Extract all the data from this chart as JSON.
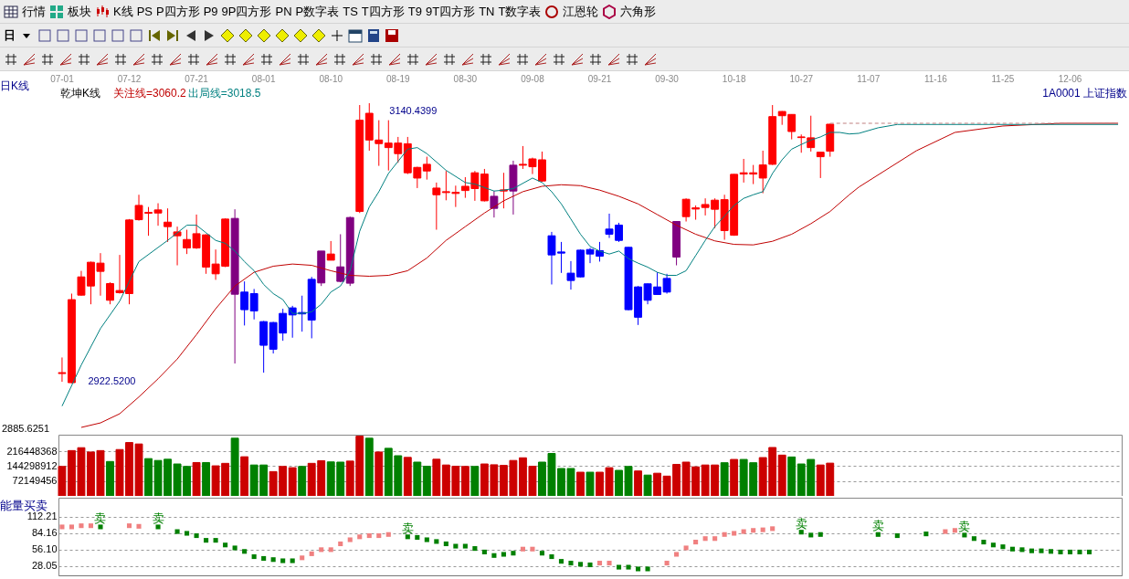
{
  "chart_data": [
    {
      "type": "other",
      "annotations": [
        "行情",
        "板块",
        "K线",
        "PS",
        "P四方形",
        "P9",
        "9P四方形",
        "PN",
        "P数字表",
        "TS",
        "T四方形",
        "T9",
        "9T四方形",
        "TN",
        "T数字表",
        "江恩轮",
        "六角形",
        "日"
      ]
    },
    {
      "type": "candlestick",
      "title": "日K线",
      "subtitle": "乾坤K线",
      "categories": [
        "07-01",
        null,
        null,
        null,
        null,
        null,
        null,
        "07-12",
        null,
        null,
        null,
        null,
        null,
        null,
        "07-21",
        null,
        null,
        null,
        null,
        null,
        null,
        "08-01",
        null,
        null,
        null,
        null,
        null,
        null,
        "08-10",
        null,
        null,
        null,
        null,
        null,
        null,
        "08-19",
        null,
        null,
        null,
        null,
        null,
        null,
        "08-30",
        null,
        null,
        null,
        null,
        null,
        null,
        "09-08",
        null,
        null,
        null,
        null,
        null,
        null,
        "09-21",
        null,
        null,
        null,
        null,
        null,
        null,
        "09-30",
        null,
        null,
        null,
        null,
        null,
        null,
        "10-18",
        null,
        null,
        null,
        null,
        null,
        null,
        "10-27",
        null,
        null,
        null,
        null,
        null,
        null,
        "11-07",
        null,
        null,
        null,
        null,
        null,
        null,
        "11-16",
        null,
        null,
        null,
        null,
        null,
        null,
        "11-25",
        null,
        null,
        null,
        null,
        null,
        null,
        "12-06",
        null,
        null,
        null,
        null,
        null
      ],
      "ohlc": [
        [
          2930.1,
          2942.6,
          2923.7,
          2930.8
        ],
        [
          2923.0,
          2992.3,
          2922.52,
          2987.6
        ],
        [
          2991.1,
          3010.0,
          2990.7,
          3005.3
        ],
        [
          2998.2,
          3017.2,
          2984.0,
          3016.7
        ],
        [
          3009.6,
          3023.8,
          2990.7,
          3016.0
        ],
        [
          2987.1,
          3001.1,
          2984.0,
          3000.1
        ],
        [
          2993.0,
          3022.4,
          2992.3,
          2994.7
        ],
        [
          2992.3,
          3050.3,
          2984.0,
          3049.6
        ],
        [
          3049.8,
          3069.2,
          3049.1,
          3060.9
        ],
        [
          3054.8,
          3059.7,
          3037.3,
          3055.5
        ],
        [
          3055.0,
          3062.6,
          3045.1,
          3057.4
        ],
        [
          3044.4,
          3058.6,
          3032.5,
          3047.9
        ],
        [
          3037.3,
          3044.4,
          3014.3,
          3040.3
        ],
        [
          3027.8,
          3042.0,
          3023.1,
          3034.4
        ],
        [
          3027.8,
          3053.8,
          3027.1,
          3038.9
        ],
        [
          3012.9,
          3038.5,
          3007.7,
          3038.0
        ],
        [
          3007.7,
          3026.6,
          3003.0,
          3015.3
        ],
        [
          3013.6,
          3050.8,
          3012.9,
          3050.3
        ],
        [
          2991.8,
          3057.9,
          2937.9,
          3050.8
        ],
        [
          2993.5,
          3001.8,
          2967.5,
          2979.8
        ],
        [
          2992.3,
          2995.9,
          2972.2,
          2978.8
        ],
        [
          2970.5,
          2971.0,
          2930.8,
          2952.1
        ],
        [
          2969.8,
          2970.3,
          2945.7,
          2949.0
        ],
        [
          2976.9,
          2980.5,
          2955.6,
          2961.6
        ],
        [
          2981.2,
          2982.8,
          2958.0,
          2975.7
        ],
        [
          2977.6,
          2990.7,
          2962.7,
          2976.5
        ],
        [
          3003.4,
          3005.3,
          2957.5,
          2971.7
        ],
        [
          3000.6,
          3025.4,
          2998.2,
          3025.4
        ],
        [
          3018.3,
          3033.2,
          3018.3,
          3023.1
        ],
        [
          3001.8,
          3038.5,
          3001.1,
          3013.1
        ],
        [
          3000.4,
          3052.2,
          2998.2,
          3051.5
        ],
        [
          3056.2,
          3139.0,
          3055.0,
          3127.2
        ],
        [
          3111.8,
          3140.4399,
          3103.5,
          3132.6
        ],
        [
          3109.0,
          3127.2,
          3091.7,
          3111.8
        ],
        [
          3105.9,
          3127.2,
          3088.1,
          3109.4
        ],
        [
          3101.2,
          3114.2,
          3094.1,
          3109.4
        ],
        [
          3086.3,
          3114.2,
          3085.3,
          3108.9
        ],
        [
          3082.2,
          3091.0,
          3074.4,
          3090.5
        ],
        [
          3087.7,
          3098.8,
          3081.0,
          3092.9
        ],
        [
          3069.2,
          3078.7,
          3042.0,
          3074.4
        ],
        [
          3070.9,
          3087.7,
          3064.9,
          3071.6
        ],
        [
          3070.2,
          3076.3,
          3059.7,
          3071.1
        ],
        [
          3072.5,
          3082.9,
          3066.8,
          3075.8
        ],
        [
          3074.0,
          3087.7,
          3064.5,
          3086.3
        ],
        [
          3064.5,
          3089.3,
          3064.0,
          3085.3
        ],
        [
          3058.6,
          3072.1,
          3051.5,
          3068.0
        ],
        [
          3072.1,
          3086.3,
          3058.6,
          3073.0
        ],
        [
          3072.1,
          3095.7,
          3053.8,
          3092.2
        ],
        [
          3092.2,
          3107.1,
          3089.3,
          3092.9
        ],
        [
          3091.0,
          3098.1,
          3085.3,
          3097.1
        ],
        [
          3079.9,
          3102.8,
          3079.2,
          3096.4
        ],
        [
          3037.3,
          3040.3,
          2999.4,
          3022.4
        ],
        [
          3024.7,
          3032.5,
          3008.4,
          3023.8
        ],
        [
          3008.2,
          3017.6,
          2995.4,
          3002.5
        ],
        [
          3026.1,
          3026.6,
          3004.9,
          3005.3
        ],
        [
          3026.6,
          3027.8,
          3016.0,
          3023.1
        ],
        [
          3025.7,
          3032.5,
          3017.2,
          3021.4
        ],
        [
          3042.5,
          3054.5,
          3035.6,
          3038.5
        ],
        [
          3045.6,
          3047.4,
          3032.5,
          3033.7
        ],
        [
          3028.3,
          3028.5,
          2979.3,
          2979.8
        ],
        [
          2997.5,
          2998.2,
          2967.9,
          2973.9
        ],
        [
          2999.9,
          3000.1,
          2984.0,
          2987.1
        ],
        [
          2997.5,
          3008.9,
          2991.6,
          2991.6
        ],
        [
          3004.1,
          3007.7,
          2992.3,
          2993.5
        ],
        [
          3020.7,
          3048.4,
          3014.3,
          3048.4
        ],
        [
          3052.2,
          3066.4,
          3048.4,
          3065.7
        ],
        [
          3058.1,
          3060.9,
          3049.8,
          3059.0
        ],
        [
          3059.3,
          3066.4,
          3053.1,
          3061.6
        ],
        [
          3057.9,
          3066.4,
          3043.2,
          3065.0
        ],
        [
          3041.3,
          3069.2,
          3034.2,
          3065.4
        ],
        [
          3037.7,
          3085.3,
          3037.3,
          3085.1
        ],
        [
          3085.3,
          3097.1,
          3078.7,
          3086.3
        ],
        [
          3085.3,
          3092.4,
          3077.5,
          3086.3
        ],
        [
          3082.2,
          3103.5,
          3070.4,
          3092.4
        ],
        [
          3092.9,
          3139.0,
          3092.4,
          3130.0
        ],
        [
          3130.7,
          3134.3,
          3123.6,
          3134.0
        ],
        [
          3118.4,
          3131.9,
          3112.3,
          3131.7
        ],
        [
          3113.7,
          3116.1,
          3101.9,
          3114.2
        ],
        [
          3105.9,
          3130.7,
          3102.8,
          3113.5
        ],
        [
          3098.8,
          3102.3,
          3082.2,
          3102.3
        ],
        [
          3103.1,
          3124.4,
          3098.8,
          3124.1
        ],
        null,
        null,
        null,
        null,
        null,
        null,
        null,
        null,
        null,
        null,
        null,
        null,
        null,
        null,
        null,
        null,
        null,
        null,
        null,
        null,
        null,
        null,
        null,
        null,
        null,
        null,
        null,
        null,
        null,
        null
      ],
      "colors": [
        "#ff0000",
        "#ff0000",
        "#ff0000",
        "#ff0000",
        "#ff0000",
        "#ff0000",
        "#ff0000",
        "#ff0000",
        "#ff0000",
        "#ff0000",
        "#ff0000",
        "#ff0000",
        "#ff0000",
        "#ff0000",
        "#ff0000",
        "#ff0000",
        "#ff0000",
        "#ff0000",
        "#800080",
        "#0000ff",
        "#0000ff",
        "#0000ff",
        "#0000ff",
        "#0000ff",
        "#0000ff",
        "#0000ff",
        "#0000ff",
        "#800080",
        "#ff0000",
        "#800080",
        "#800080",
        "#ff0000",
        "#ff0000",
        "#ff0000",
        "#ff0000",
        "#ff0000",
        "#ff0000",
        "#ff0000",
        "#ff0000",
        "#ff0000",
        "#ff0000",
        "#ff0000",
        "#ff0000",
        "#ff0000",
        "#ff0000",
        "#800080",
        "#ff0000",
        "#800080",
        "#ff0000",
        "#ff0000",
        "#ff0000",
        "#0000ff",
        "#0000ff",
        "#0000ff",
        "#0000ff",
        "#0000ff",
        "#0000ff",
        "#0000ff",
        "#0000ff",
        "#0000ff",
        "#0000ff",
        "#0000ff",
        "#0000ff",
        "#0000ff",
        "#800080",
        "#ff0000",
        "#ff0000",
        "#ff0000",
        "#ff0000",
        "#ff0000",
        "#ff0000",
        "#ff0000",
        "#ff0000",
        "#ff0000",
        "#ff0000",
        "#ff0000",
        "#ff0000",
        "#ff0000",
        "#ff0000",
        "#ff0000",
        "#ff0000",
        null,
        null,
        null,
        null,
        null,
        null,
        null,
        null,
        null,
        null,
        null,
        null,
        null,
        null,
        null,
        null,
        null,
        null,
        null,
        null,
        null,
        null,
        null,
        null,
        null,
        null,
        null,
        null,
        null,
        null
      ],
      "series": [
        {
          "name": "关注线=3060.2",
          "type": "line",
          "color": "#c00000",
          "values": [
            null,
            null,
            2888.2,
            null,
            2891.7,
            null,
            2898.8,
            null,
            2911.9,
            null,
            2926.0,
            null,
            2941.4,
            null,
            2960.4,
            null,
            2980.5,
            null,
            2998.2,
            null,
            3008.9,
            null,
            3013.6,
            null,
            3015.3,
            null,
            3014.3,
            null,
            3010.1,
            null,
            3006.5,
            null,
            3005.8,
            null,
            3006.5,
            null,
            3010.1,
            null,
            3020.0,
            null,
            3033.7,
            null,
            3044.4,
            null,
            3055.0,
            null,
            3064.5,
            null,
            3071.6,
            null,
            3075.8,
            null,
            3077.0,
            null,
            3076.3,
            null,
            3072.8,
            null,
            3068.0,
            null,
            3062.1,
            null,
            3053.8,
            null,
            3045.5,
            null,
            3038.5,
            null,
            3033.3,
            null,
            3030.6,
            null,
            3030.2,
            null,
            3033.0,
            null,
            3038.5,
            null,
            3046.7,
            null,
            3056.2,
            null,
            3069.2,
            3075.2,
            null,
            null,
            null,
            null,
            null,
            3103.5,
            null,
            null,
            null,
            3117.7,
            null,
            null,
            null,
            null,
            3122.7,
            null,
            null,
            null,
            null,
            null,
            3124.8,
            null,
            null,
            null,
            null,
            null,
            3124.8
          ]
        },
        {
          "name": "出局线=3018.5",
          "type": "line",
          "color": "#008080",
          "values": [
            2904.8,
            null,
            2936.7,
            null,
            2965.1,
            null,
            2986.4,
            null,
            3017.2,
            null,
            null,
            3033.7,
            null,
            3045.5,
            3045.5,
            3039.6,
            3033.7,
            3031.4,
            3025.4,
            3017.2,
            3010.1,
            2999.4,
            2992.3,
            2987.6,
            2976.9,
            2976.9,
            2978.1,
            2984.0,
            2993.5,
            2998.2,
            3010.1,
            3040.8,
            3059.7,
            3071.6,
            3085.8,
            3095.2,
            3104.7,
            3105.9,
            3101.2,
            null,
            3088.2,
            null,
            3078.7,
            3077.5,
            null,
            3072.1,
            3072.8,
            3074.0,
            null,
            3082.2,
            3078.7,
            3071.6,
            3062.1,
            3050.3,
            3038.5,
            3029.0,
            3025.4,
            3023.1,
            3025.4,
            3019.5,
            3016.0,
            3012.9,
            3008.9,
            3006.5,
            3006.5,
            3010.1,
            3021.9,
            3033.7,
            3044.4,
            3052.6,
            3060.9,
            3066.4,
            3069.2,
            3071.6,
            3085.8,
            3096.4,
            3104.7,
            3108.3,
            3111.8,
            3114.2,
            3117.7,
            3117.7,
            3116.5,
            3117.0,
            null,
            3121.3,
            null,
            3123.9,
            null,
            null,
            null,
            null,
            null,
            null,
            null,
            null,
            null,
            null,
            null,
            null,
            null,
            null,
            null,
            null,
            null,
            null,
            null,
            null,
            null,
            null,
            3123.9
          ]
        },
        {
          "type": "line",
          "color": "#c08080",
          "line_style": "dashed",
          "values": [
            null,
            null,
            null,
            null,
            null,
            null,
            null,
            null,
            null,
            null,
            null,
            null,
            null,
            null,
            null,
            null,
            null,
            null,
            null,
            null,
            null,
            null,
            null,
            null,
            null,
            null,
            null,
            null,
            null,
            null,
            null,
            null,
            null,
            null,
            null,
            null,
            null,
            null,
            null,
            null,
            null,
            null,
            null,
            null,
            null,
            null,
            null,
            null,
            null,
            null,
            null,
            null,
            null,
            null,
            null,
            null,
            null,
            null,
            null,
            null,
            null,
            null,
            null,
            null,
            null,
            null,
            null,
            null,
            null,
            null,
            null,
            null,
            null,
            null,
            null,
            null,
            null,
            null,
            null,
            null,
            3124.8,
            null,
            null,
            null,
            null,
            null,
            null,
            null,
            null,
            null,
            null,
            null,
            null,
            null,
            null,
            null,
            null,
            null,
            null,
            null,
            null,
            null,
            null,
            null,
            null,
            null,
            null,
            null,
            null,
            null,
            3124.8
          ]
        }
      ],
      "legend": "top left",
      "annotations": [
        "1A0001 上证指数",
        "2885.6251",
        "3140.4399",
        "2922.5200"
      ]
    },
    {
      "type": "bar",
      "tick_labels": "y",
      "categories": [
        null,
        null,
        null,
        null,
        null,
        null,
        null,
        null,
        null,
        null,
        null,
        null,
        null,
        null,
        null,
        null,
        null,
        null,
        null,
        null,
        null,
        null,
        null,
        null,
        null,
        null,
        null,
        null,
        null,
        null,
        null,
        null,
        null,
        null,
        null,
        null,
        null,
        null,
        null,
        null,
        null,
        null,
        null,
        null,
        null,
        null,
        null,
        null,
        null,
        null,
        null,
        null,
        null,
        null,
        null,
        null,
        null,
        null,
        null,
        null,
        null,
        null,
        null,
        null,
        null,
        null,
        null,
        null,
        null,
        null,
        null,
        null,
        null,
        null,
        null,
        null,
        null,
        null,
        null,
        null,
        null,
        null,
        null,
        null,
        null,
        null,
        null,
        null,
        null,
        null,
        null,
        null,
        null,
        null,
        null,
        null,
        null,
        null,
        null,
        null,
        null,
        null,
        null,
        null,
        null,
        null,
        null,
        null,
        null,
        null,
        null
      ],
      "values": [
        143000000,
        220000000,
        234000000,
        213000000,
        220000000,
        167000000,
        225000000,
        259000000,
        252000000,
        181000000,
        172000000,
        178000000,
        155000000,
        143000000,
        162000000,
        162000000,
        146000000,
        158000000,
        280000000,
        190000000,
        150000000,
        150000000,
        118000000,
        143000000,
        137000000,
        143000000,
        158000000,
        171000000,
        165000000,
        164000000,
        169000000,
        290000000,
        280000000,
        213000000,
        231000000,
        195000000,
        187000000,
        164000000,
        144000000,
        178000000,
        150000000,
        144000000,
        143000000,
        143000000,
        155000000,
        151000000,
        148000000,
        172000000,
        185000000,
        144000000,
        164000000,
        206000000,
        133000000,
        133000000,
        115000000,
        115000000,
        115000000,
        137000000,
        124000000,
        143000000,
        121000000,
        101000000,
        110000000,
        96000000,
        153000000,
        164000000,
        141000000,
        150000000,
        150000000,
        161000000,
        177000000,
        177000000,
        161000000,
        186000000,
        235000000,
        198000000,
        189000000,
        155000000,
        177000000,
        150000000,
        159000000,
        null,
        null,
        null,
        null,
        null,
        null,
        null,
        null,
        null,
        null,
        null,
        null,
        null,
        null,
        null,
        null,
        null,
        null,
        null,
        null,
        null,
        null,
        null,
        null,
        null,
        null,
        null,
        null,
        null,
        null
      ],
      "colors": [
        "#cc0000",
        "#cc0000",
        "#cc0000",
        "#cc0000",
        "#cc0000",
        "#008000",
        "#cc0000",
        "#cc0000",
        "#cc0000",
        "#008000",
        "#008000",
        "#008000",
        "#008000",
        "#008000",
        "#cc0000",
        "#008000",
        "#cc0000",
        "#cc0000",
        "#008000",
        "#cc0000",
        "#008000",
        "#008000",
        "#cc0000",
        "#cc0000",
        "#cc0000",
        "#008000",
        "#cc0000",
        "#cc0000",
        "#008000",
        "#008000",
        "#cc0000",
        "#cc0000",
        "#008000",
        "#cc0000",
        "#008000",
        "#008000",
        "#cc0000",
        "#008000",
        "#008000",
        "#cc0000",
        "#cc0000",
        "#cc0000",
        "#cc0000",
        "#008000",
        "#cc0000",
        "#cc0000",
        "#cc0000",
        "#cc0000",
        "#cc0000",
        "#cc0000",
        "#008000",
        "#008000",
        "#008000",
        "#008000",
        "#cc0000",
        "#008000",
        "#cc0000",
        "#cc0000",
        "#008000",
        "#008000",
        "#cc0000",
        "#008000",
        "#cc0000",
        "#cc0000",
        "#cc0000",
        "#cc0000",
        "#cc0000",
        "#cc0000",
        "#cc0000",
        "#008000",
        "#cc0000",
        "#008000",
        "#008000",
        "#cc0000",
        "#cc0000",
        "#cc0000",
        "#008000",
        "#008000",
        "#008000",
        "#cc0000",
        "#cc0000",
        null,
        null,
        null,
        null,
        null,
        null,
        null,
        null,
        null,
        null,
        null,
        null,
        null,
        null,
        null,
        null,
        null,
        null,
        null,
        null,
        null,
        null,
        null,
        null,
        null,
        null,
        null,
        null,
        null,
        null
      ],
      "ylim": [
        0,
        297000000
      ],
      "yticks": [
        72149456,
        144298912,
        216448368
      ],
      "grid": "y"
    },
    {
      "type": "scatter",
      "title": "能量买卖",
      "tick_labels": "y",
      "marker": "square",
      "categories": [
        null,
        null,
        null,
        null,
        null,
        null,
        null,
        null,
        null,
        null,
        null,
        null,
        null,
        null,
        null,
        null,
        null,
        null,
        null,
        null,
        null,
        null,
        null,
        null,
        null,
        null,
        null,
        null,
        null,
        null,
        null,
        null,
        null,
        null,
        null,
        null,
        null,
        null,
        null,
        null,
        null,
        null,
        null,
        null,
        null,
        null,
        null,
        null,
        null,
        null,
        null,
        null,
        null,
        null,
        null,
        null,
        null,
        null,
        null,
        null,
        null,
        null,
        null,
        null,
        null,
        null,
        null,
        null,
        null,
        null,
        null,
        null,
        null,
        null,
        null,
        null,
        null,
        null,
        null,
        null,
        null,
        null,
        null,
        null,
        null,
        null,
        null,
        null,
        null,
        null,
        null,
        null,
        null,
        null,
        null,
        null,
        null,
        null,
        null,
        null,
        null,
        null,
        null,
        null,
        null,
        null,
        null,
        null,
        null,
        null,
        null
      ],
      "values": [
        95,
        95,
        97,
        97,
        95,
        null,
        null,
        97,
        96,
        null,
        95,
        null,
        87,
        84,
        80,
        72,
        72,
        64,
        59,
        53,
        44,
        41,
        39,
        37,
        37,
        42,
        49,
        56,
        56,
        66,
        73,
        78,
        80,
        80,
        82,
        null,
        78,
        77,
        73,
        70,
        66,
        62,
        62,
        58,
        52,
        46,
        48,
        50,
        57,
        57,
        50,
        44,
        36,
        33,
        31,
        30,
        33,
        33,
        26,
        26,
        23,
        23,
        null,
        33,
        48,
        59,
        69,
        75,
        75,
        82,
        84,
        87,
        89,
        90,
        92,
        null,
        null,
        86,
        81,
        82,
        null,
        null,
        null,
        null,
        null,
        82,
        null,
        80,
        null,
        null,
        83,
        null,
        87,
        89,
        81,
        75,
        69,
        64,
        61,
        57,
        56,
        54,
        54,
        53,
        52,
        52,
        52,
        52,
        null,
        null,
        null
      ],
      "colors": [
        "#f08080",
        "#f08080",
        "#f08080",
        "#f08080",
        "#008000",
        null,
        null,
        "#f08080",
        "#f08080",
        null,
        "#008000",
        null,
        "#008000",
        "#008000",
        "#008000",
        "#008000",
        "#008000",
        "#008000",
        "#008000",
        "#008000",
        "#008000",
        "#008000",
        "#008000",
        "#008000",
        "#008000",
        "#f08080",
        "#f08080",
        "#f08080",
        "#f08080",
        "#f08080",
        "#f08080",
        "#f08080",
        "#f08080",
        "#f08080",
        "#f08080",
        null,
        "#008000",
        "#008000",
        "#008000",
        "#008000",
        "#008000",
        "#008000",
        "#008000",
        "#008000",
        "#008000",
        "#008000",
        "#008000",
        "#008000",
        "#f08080",
        "#f08080",
        "#008000",
        "#008000",
        "#008000",
        "#008000",
        "#008000",
        "#008000",
        "#f08080",
        "#f08080",
        "#008000",
        "#008000",
        "#008000",
        "#008000",
        null,
        "#f08080",
        "#f08080",
        "#f08080",
        "#f08080",
        "#f08080",
        "#f08080",
        "#f08080",
        "#f08080",
        "#f08080",
        "#f08080",
        "#f08080",
        "#f08080",
        null,
        null,
        "#008000",
        "#008000",
        "#008000",
        null,
        null,
        null,
        null,
        null,
        "#008000",
        null,
        "#008000",
        null,
        null,
        "#008000",
        null,
        "#f08080",
        "#f08080",
        "#008000",
        "#008000",
        "#008000",
        "#008000",
        "#008000",
        "#008000",
        "#008000",
        "#008000",
        "#008000",
        "#008000",
        "#008000",
        "#008000",
        "#008000",
        "#008000",
        null,
        null,
        null
      ],
      "value_labels": [
        null,
        null,
        null,
        null,
        "卖",
        null,
        null,
        null,
        null,
        null,
        "卖",
        null,
        null,
        null,
        null,
        null,
        null,
        null,
        null,
        null,
        null,
        null,
        null,
        null,
        null,
        null,
        null,
        null,
        null,
        null,
        null,
        null,
        null,
        null,
        null,
        null,
        "卖",
        null,
        null,
        null,
        null,
        null,
        null,
        null,
        null,
        null,
        null,
        null,
        null,
        null,
        null,
        null,
        null,
        null,
        null,
        null,
        null,
        null,
        null,
        null,
        null,
        null,
        null,
        null,
        null,
        null,
        null,
        null,
        null,
        null,
        null,
        null,
        null,
        null,
        null,
        null,
        null,
        "卖",
        null,
        null,
        null,
        null,
        null,
        null,
        null,
        "卖",
        null,
        null,
        null,
        null,
        null,
        null,
        null,
        null,
        "卖",
        null,
        null,
        null,
        null,
        null,
        null,
        null,
        null,
        null,
        null,
        null,
        null,
        null,
        null,
        null,
        null
      ],
      "ylim": [
        12,
        145
      ],
      "yticks": [
        28.05,
        {
          "value": 56.1,
          "label": "56.10"
        },
        84.16,
        112.21
      ],
      "grid": "y"
    }
  ]
}
